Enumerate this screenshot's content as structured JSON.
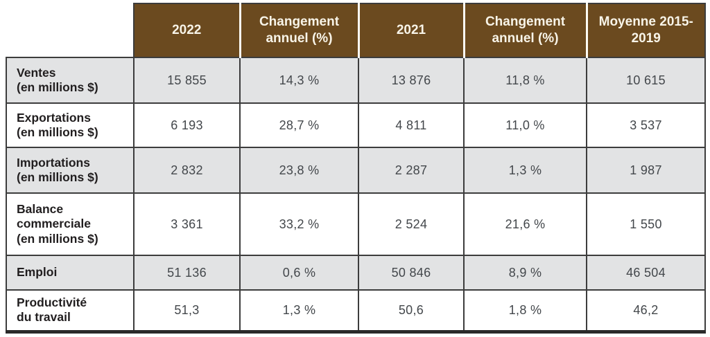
{
  "colors": {
    "header_background": "#6b4a1f",
    "header_text": "#f8f4e8",
    "row_shaded_background": "#e2e3e4",
    "row_plain_background": "#ffffff",
    "grid_border": "#3c3c3c"
  },
  "table": {
    "columns": [
      "2022",
      "Changement annuel (%)",
      "2021",
      "Changement annuel (%)",
      "Moyenne 2015-2019"
    ],
    "rows": [
      {
        "name": "Ventes",
        "sub": "(en millions $)",
        "values": [
          "15 855",
          "14,3 %",
          "13 876",
          "11,8 %",
          "10 615"
        ]
      },
      {
        "name": "Exportations",
        "sub": "(en millions $)",
        "values": [
          "6 193",
          "28,7 %",
          "4 811",
          "11,0 %",
          "3 537"
        ]
      },
      {
        "name": "Importations",
        "sub": "(en millions $)",
        "values": [
          "2 832",
          "23,8 %",
          "2 287",
          "1,3 %",
          "1 987"
        ]
      },
      {
        "name": "Balance commerciale",
        "sub": "(en millions $)",
        "values": [
          "3 361",
          "33,2 %",
          "2 524",
          "21,6 %",
          "1 550"
        ]
      },
      {
        "name": "Emploi",
        "sub": "",
        "values": [
          "51 136",
          "0,6 %",
          "50 846",
          "8,9 %",
          "46 504"
        ]
      },
      {
        "name": "Productivité",
        "sub": "du travail",
        "values": [
          "51,3",
          "1,3 %",
          "50,6",
          "1,8 %",
          "46,2"
        ]
      }
    ]
  },
  "chart_data": {
    "type": "table",
    "title": "",
    "columns": [
      "",
      "2022",
      "Changement annuel (%)",
      "2021",
      "Changement annuel (%)",
      "Moyenne 2015-2019"
    ],
    "rows": [
      {
        "label": "Ventes (en millions $)",
        "values": [
          "15 855",
          "14,3 %",
          "13 876",
          "11,8 %",
          "10 615"
        ]
      },
      {
        "label": "Exportations (en millions $)",
        "values": [
          "6 193",
          "28,7 %",
          "4 811",
          "11,0 %",
          "3 537"
        ]
      },
      {
        "label": "Importations (en millions $)",
        "values": [
          "2 832",
          "23,8 %",
          "2 287",
          "1,3 %",
          "1 987"
        ]
      },
      {
        "label": "Balance commerciale (en millions $)",
        "values": [
          "3 361",
          "33,2 %",
          "2 524",
          "21,6 %",
          "1 550"
        ]
      },
      {
        "label": "Emploi",
        "values": [
          "51 136",
          "0,6 %",
          "50 846",
          "8,9 %",
          "46 504"
        ]
      },
      {
        "label": "Productivité du travail",
        "values": [
          "51,3",
          "1,3 %",
          "50,6",
          "1,8 %",
          "46,2"
        ]
      }
    ]
  }
}
